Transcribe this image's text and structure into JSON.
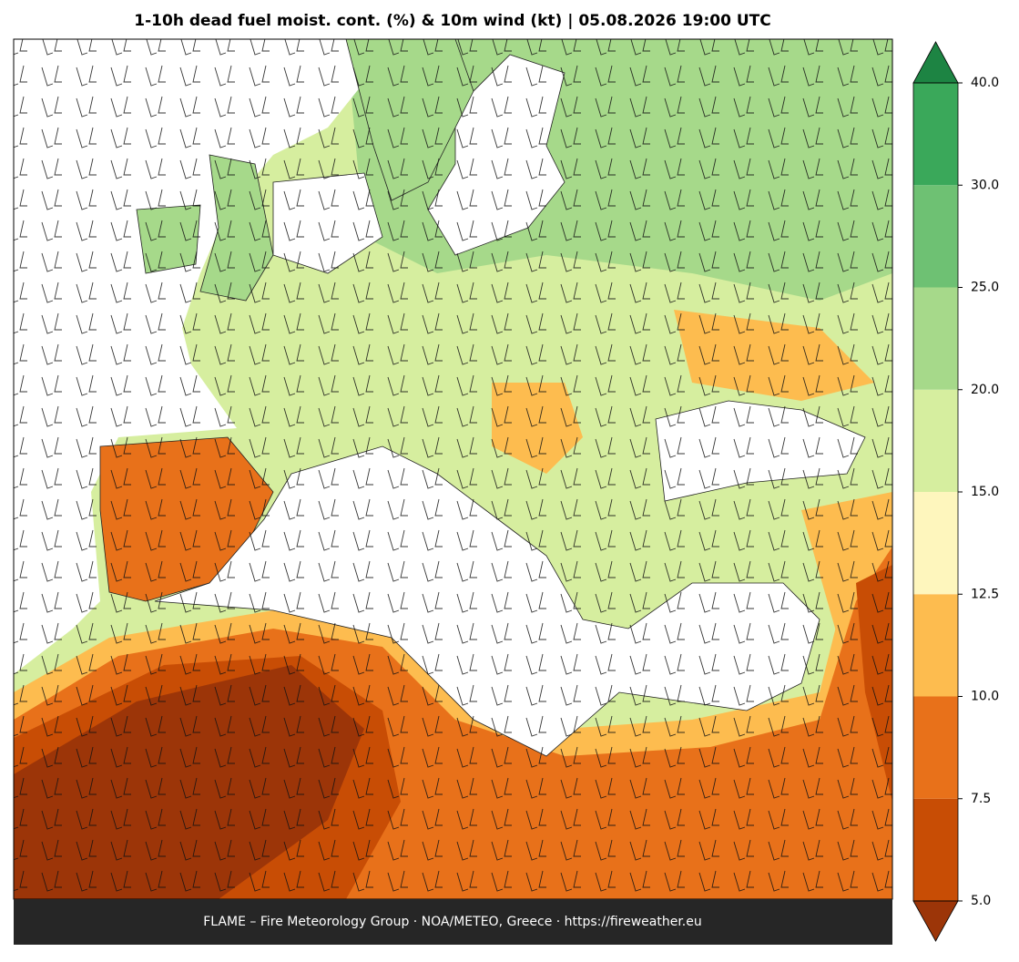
{
  "title": "1-10h dead fuel moist. cont. (%) & 10m wind (kt)  |  05.08.2026 19:00 UTC",
  "footer": "FLAME – Fire Meteorology Group · NOA/METEO, Greece · https://fireweather.eu",
  "colorbar": {
    "ticks": [
      {
        "value": 5,
        "label": "5.0"
      },
      {
        "value": 7.5,
        "label": "7.5"
      },
      {
        "value": 10,
        "label": "10.0"
      },
      {
        "value": 12.5,
        "label": "12.5"
      },
      {
        "value": 15,
        "label": "15.0"
      },
      {
        "value": 20,
        "label": "20.0"
      },
      {
        "value": 25,
        "label": "25.0"
      },
      {
        "value": 30,
        "label": "30.0"
      },
      {
        "value": 40,
        "label": "40.0"
      }
    ],
    "colors": [
      "#c84d05",
      "#e8711a",
      "#fdbc4f",
      "#fef6bd",
      "#d6ee9f",
      "#a6d98a",
      "#6ec173",
      "#3aa85a"
    ],
    "under_color": "#9c3508",
    "over_color": "#1d8443"
  }
}
